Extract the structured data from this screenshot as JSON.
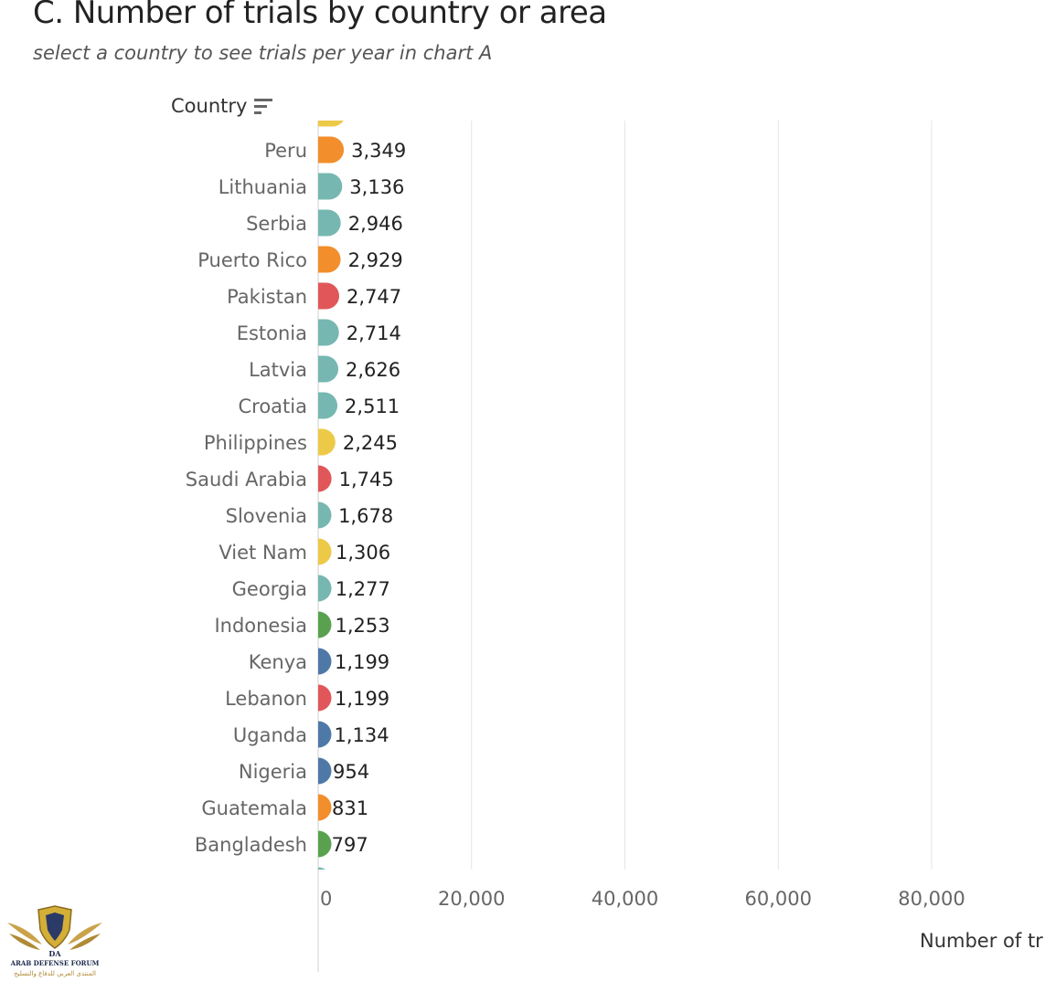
{
  "title": "C. Number of trials by country or area",
  "subtitle": "select a country to see trials per year in chart A",
  "column_header": "Country",
  "icons": {
    "sort": "sort-descending-icon",
    "logo": "arab-defense-forum-logo"
  },
  "logo_text": {
    "line1": "ARAB DEFENSE FORUM",
    "line2": "المنتدى العربي للدفاع والتسليح",
    "mark": "DA"
  },
  "chart_data": {
    "type": "bar",
    "orientation": "horizontal",
    "title": "C. Number of trials by country or area",
    "subtitle": "select a country to see trials per year in chart A",
    "ylabel": "Country",
    "xlabel": "Number of tr",
    "xlim": [
      0,
      100000
    ],
    "x_ticks": [
      0,
      20000,
      40000,
      60000,
      80000
    ],
    "x_tick_labels": [
      "0",
      "20,000",
      "40,000",
      "60,000",
      "80,000"
    ],
    "grid": true,
    "colors": {
      "orange": "#f28e2b",
      "teal": "#76b7b2",
      "red": "#e15759",
      "yellow": "#edc948",
      "green": "#59a14f",
      "blue": "#4e79a7"
    },
    "categories": [
      "Peru",
      "Lithuania",
      "Serbia",
      "Puerto Rico",
      "Pakistan",
      "Estonia",
      "Latvia",
      "Croatia",
      "Philippines",
      "Saudi Arabia",
      "Slovenia",
      "Viet Nam",
      "Georgia",
      "Indonesia",
      "Kenya",
      "Lebanon",
      "Uganda",
      "Nigeria",
      "Guatemala",
      "Bangladesh"
    ],
    "values": [
      3349,
      3136,
      2946,
      2929,
      2747,
      2714,
      2626,
      2511,
      2245,
      1745,
      1678,
      1306,
      1277,
      1253,
      1199,
      1199,
      1134,
      954,
      831,
      797
    ],
    "value_labels": [
      "3,349",
      "3,136",
      "2,946",
      "2,929",
      "2,747",
      "2,714",
      "2,626",
      "2,511",
      "2,245",
      "1,745",
      "1,678",
      "1,306",
      "1,277",
      "1,253",
      "1,199",
      "1,199",
      "1,134",
      "954",
      "831",
      "797"
    ],
    "bar_colors": [
      "#f28e2b",
      "#76b7b2",
      "#76b7b2",
      "#f28e2b",
      "#e15759",
      "#76b7b2",
      "#76b7b2",
      "#76b7b2",
      "#edc948",
      "#e15759",
      "#76b7b2",
      "#edc948",
      "#76b7b2",
      "#59a14f",
      "#4e79a7",
      "#e15759",
      "#4e79a7",
      "#4e79a7",
      "#f28e2b",
      "#59a14f"
    ],
    "partial_top_bar_color": "#edc948",
    "partial_bottom_bar_color": "#76b7b2"
  }
}
